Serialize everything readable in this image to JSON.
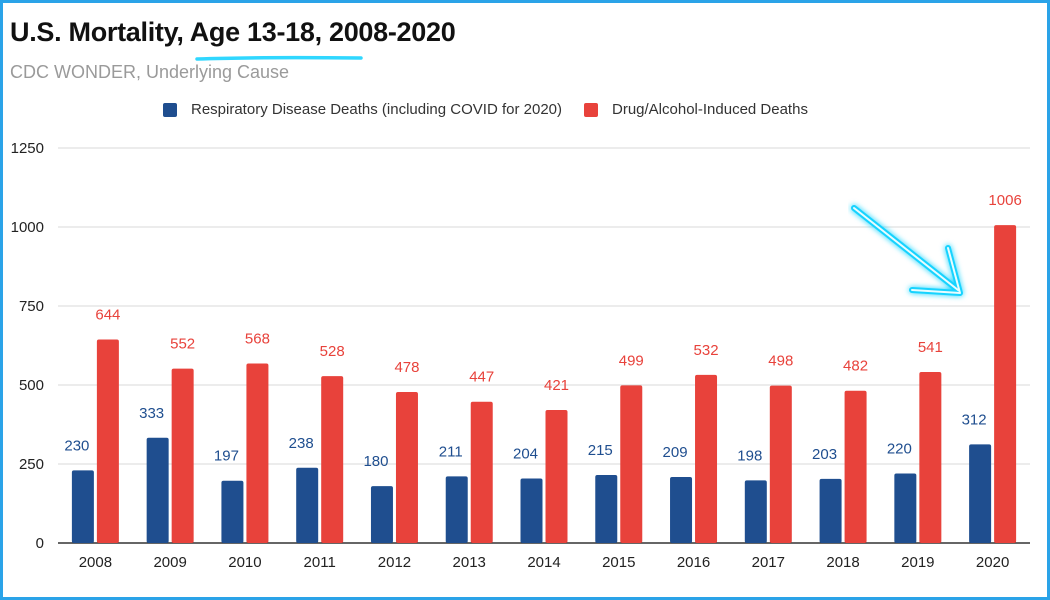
{
  "title": "U.S. Mortality, Age 13-18, 2008-2020",
  "subtitle": "CDC WONDER, Underlying Cause",
  "colors": {
    "respiratory": "#1f4e8f",
    "drug": "#e8423b",
    "frame": "#2aa3e8",
    "annotation": "#19d3ff"
  },
  "annotations": {
    "title_underline_icon": "cyan-underline-icon",
    "arrow_icon": "cyan-arrow-icon"
  },
  "chart_data": {
    "type": "bar",
    "title": "U.S. Mortality, Age 13-18, 2008-2020",
    "subtitle": "CDC WONDER, Underlying Cause",
    "xlabel": "",
    "ylabel": "",
    "ylim": [
      0,
      1250
    ],
    "yticks": [
      "0",
      "250",
      "500",
      "750",
      "1000",
      "1250"
    ],
    "grid": true,
    "legend_position": "top",
    "categories": [
      "2008",
      "2009",
      "2010",
      "2011",
      "2012",
      "2013",
      "2014",
      "2015",
      "2016",
      "2017",
      "2018",
      "2019",
      "2020"
    ],
    "series": [
      {
        "name": "Respiratory Disease Deaths (including COVID for 2020)",
        "color": "#1f4e8f",
        "values": [
          230,
          333,
          197,
          238,
          180,
          211,
          204,
          215,
          209,
          198,
          203,
          220,
          312
        ]
      },
      {
        "name": "Drug/Alcohol-Induced Deaths",
        "color": "#e8423b",
        "values": [
          644,
          552,
          568,
          528,
          478,
          447,
          421,
          499,
          532,
          498,
          482,
          541,
          1006
        ]
      }
    ]
  }
}
